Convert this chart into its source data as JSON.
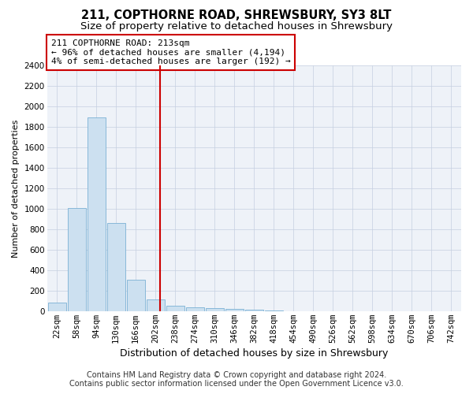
{
  "title": "211, COPTHORNE ROAD, SHREWSBURY, SY3 8LT",
  "subtitle": "Size of property relative to detached houses in Shrewsbury",
  "xlabel": "Distribution of detached houses by size in Shrewsbury",
  "ylabel": "Number of detached properties",
  "bar_color": "#cce0f0",
  "bar_edge_color": "#7ab0d4",
  "bin_labels": [
    "22sqm",
    "58sqm",
    "94sqm",
    "130sqm",
    "166sqm",
    "202sqm",
    "238sqm",
    "274sqm",
    "310sqm",
    "346sqm",
    "382sqm",
    "418sqm",
    "454sqm",
    "490sqm",
    "526sqm",
    "562sqm",
    "598sqm",
    "634sqm",
    "670sqm",
    "706sqm",
    "742sqm"
  ],
  "bar_values": [
    80,
    1010,
    1890,
    860,
    310,
    110,
    50,
    40,
    30,
    20,
    10,
    5,
    2,
    1,
    0,
    0,
    0,
    0,
    0,
    0,
    0
  ],
  "vline_x": 5.25,
  "vline_color": "#cc0000",
  "annotation_text": "211 COPTHORNE ROAD: 213sqm\n← 96% of detached houses are smaller (4,194)\n4% of semi-detached houses are larger (192) →",
  "annotation_box_color": "#ffffff",
  "annotation_box_edge_color": "#cc0000",
  "ylim": [
    0,
    2400
  ],
  "yticks": [
    0,
    200,
    400,
    600,
    800,
    1000,
    1200,
    1400,
    1600,
    1800,
    2000,
    2200,
    2400
  ],
  "footer_line1": "Contains HM Land Registry data © Crown copyright and database right 2024.",
  "footer_line2": "Contains public sector information licensed under the Open Government Licence v3.0.",
  "bg_color": "#eef2f8",
  "title_fontsize": 10.5,
  "subtitle_fontsize": 9.5,
  "xlabel_fontsize": 9,
  "ylabel_fontsize": 8,
  "tick_fontsize": 7.5,
  "annotation_fontsize": 8,
  "footer_fontsize": 7
}
